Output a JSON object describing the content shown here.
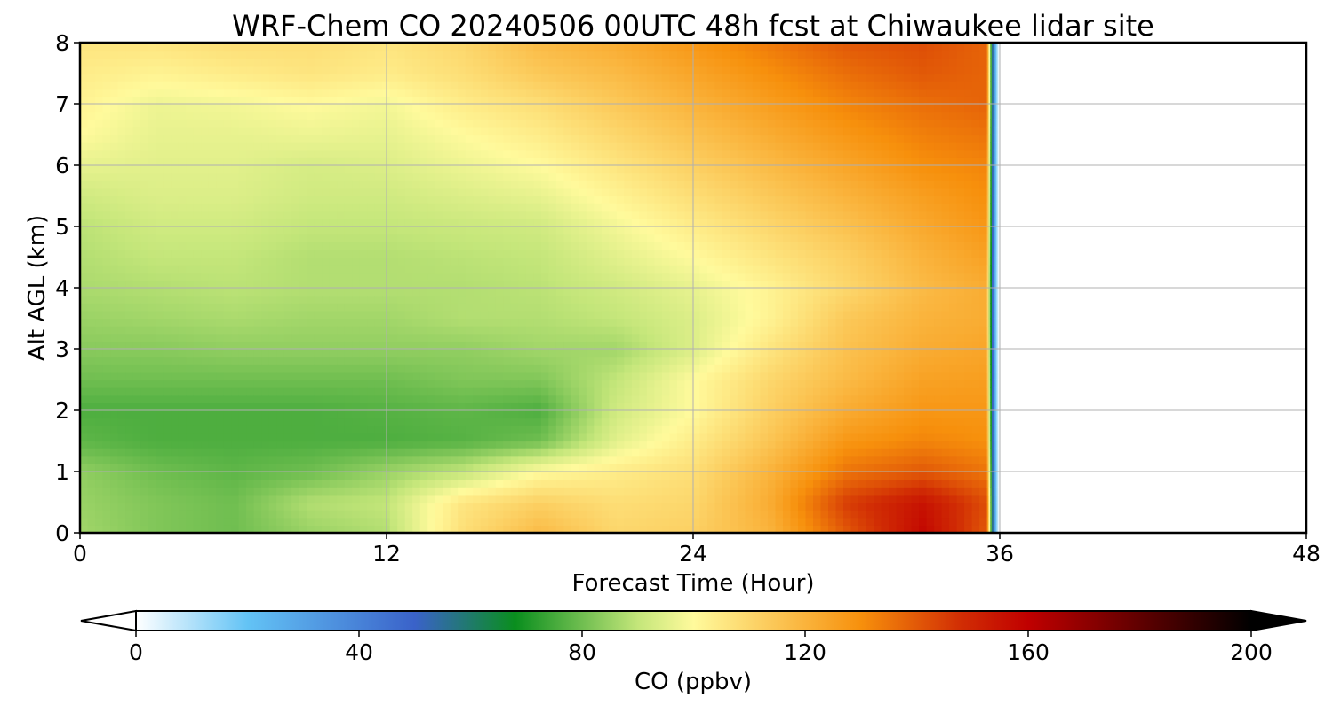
{
  "chart_data": {
    "type": "heatmap",
    "title": "WRF-Chem CO  20240506 00UTC 48h fcst at Chiwaukee lidar site",
    "xlabel": "Forecast Time (Hour)",
    "ylabel": "Alt AGL (km)",
    "xlim": [
      0,
      48
    ],
    "ylim": [
      0,
      8
    ],
    "x_ticks": [
      "0",
      "12",
      "24",
      "36",
      "48"
    ],
    "y_ticks": [
      "0",
      "1",
      "2",
      "3",
      "4",
      "5",
      "6",
      "7",
      "8"
    ],
    "grid": true,
    "data_extent_hours": [
      0,
      36
    ],
    "x": [
      0,
      3,
      6,
      9,
      12,
      15,
      18,
      21,
      24,
      27,
      30,
      33,
      35.5
    ],
    "y": [
      0,
      0.5,
      1,
      1.5,
      2,
      2.5,
      3,
      3.5,
      4,
      4.5,
      5,
      5.5,
      6,
      6.5,
      7,
      7.5,
      8
    ],
    "z": [
      [
        86,
        82,
        80,
        85,
        88,
        108,
        118,
        110,
        112,
        120,
        140,
        158,
        140
      ],
      [
        85,
        82,
        80,
        88,
        90,
        106,
        112,
        108,
        110,
        122,
        145,
        155,
        142
      ],
      [
        84,
        80,
        78,
        80,
        85,
        90,
        100,
        104,
        108,
        120,
        135,
        140,
        135
      ],
      [
        78,
        76,
        76,
        76,
        76,
        77,
        80,
        95,
        104,
        115,
        128,
        132,
        130
      ],
      [
        76,
        76,
        76,
        76,
        77,
        78,
        76,
        92,
        100,
        112,
        122,
        128,
        128
      ],
      [
        80,
        80,
        80,
        80,
        80,
        82,
        82,
        90,
        100,
        110,
        118,
        125,
        126
      ],
      [
        83,
        83,
        84,
        84,
        84,
        84,
        86,
        86,
        94,
        106,
        116,
        122,
        124
      ],
      [
        85,
        86,
        87,
        86,
        86,
        88,
        88,
        90,
        94,
        102,
        114,
        120,
        122
      ],
      [
        87,
        88,
        89,
        88,
        88,
        88,
        89,
        92,
        96,
        102,
        110,
        118,
        122
      ],
      [
        88,
        90,
        90,
        88,
        88,
        89,
        90,
        95,
        100,
        106,
        112,
        120,
        125
      ],
      [
        89,
        92,
        92,
        90,
        90,
        91,
        92,
        98,
        104,
        110,
        116,
        123,
        128
      ],
      [
        92,
        94,
        94,
        92,
        92,
        94,
        96,
        102,
        108,
        114,
        120,
        126,
        130
      ],
      [
        96,
        95,
        95,
        93,
        94,
        97,
        100,
        106,
        112,
        118,
        124,
        130,
        132
      ],
      [
        100,
        96,
        96,
        97,
        96,
        100,
        104,
        110,
        116,
        122,
        128,
        133,
        135
      ],
      [
        102,
        97,
        98,
        100,
        98,
        104,
        108,
        114,
        120,
        126,
        132,
        136,
        138
      ],
      [
        104,
        102,
        104,
        106,
        104,
        108,
        114,
        118,
        124,
        130,
        136,
        140,
        138
      ],
      [
        106,
        106,
        108,
        108,
        106,
        110,
        118,
        122,
        128,
        134,
        140,
        142,
        138
      ]
    ],
    "colorbar": {
      "label": "CO  (ppbv)",
      "min": 0,
      "max": 200,
      "tick_labels": [
        "0",
        "40",
        "80",
        "120",
        "160",
        "200"
      ],
      "extend": "both",
      "stops": [
        {
          "v": 0,
          "c": "#ffffff"
        },
        {
          "v": 20,
          "c": "#63c3f5"
        },
        {
          "v": 50,
          "c": "#3a62c9"
        },
        {
          "v": 68,
          "c": "#0a8e1e"
        },
        {
          "v": 90,
          "c": "#c4e67a"
        },
        {
          "v": 100,
          "c": "#fffa9c"
        },
        {
          "v": 130,
          "c": "#f7900c"
        },
        {
          "v": 148,
          "c": "#d12d04"
        },
        {
          "v": 160,
          "c": "#c00000"
        },
        {
          "v": 200,
          "c": "#000000"
        }
      ]
    }
  }
}
